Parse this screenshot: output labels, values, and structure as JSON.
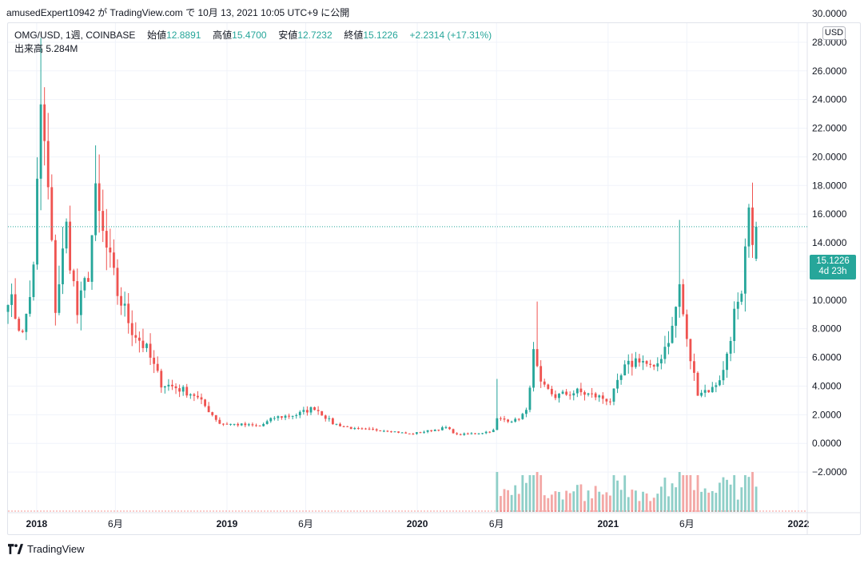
{
  "caption": "amusedExpert10942 が TradingView.com で 10月 13, 2021 10:05 UTC+9 に公開",
  "legend": {
    "symbol": "OMG/USD, 1週, COINBASE",
    "open_label": "始値",
    "open_value": "12.8891",
    "high_label": "高値",
    "high_value": "15.4700",
    "low_label": "安値",
    "low_value": "12.7232",
    "close_label": "終値",
    "close_value": "15.1226",
    "change": "+2.2314 (+17.31%)",
    "volume_label": "出来高",
    "volume_value": "5.284M"
  },
  "currency_button": "USD",
  "last_price": {
    "value": "15.1226",
    "countdown": "4d 23h"
  },
  "brand_name": "TradingView",
  "colors": {
    "up": "#26a69a",
    "down": "#ef5350",
    "vol_up": "#8fcfc8",
    "vol_down": "#f3a8a6",
    "grid": "#f0f3fa",
    "axis_text": "#131722"
  },
  "chart_data": {
    "type": "candlestick",
    "symbol": "OMG/USD",
    "interval": "1W",
    "y_ticks": [
      "30.0000",
      "28.0000",
      "26.0000",
      "24.0000",
      "22.0000",
      "20.0000",
      "18.0000",
      "16.0000",
      "14.0000",
      "12.0000",
      "10.0000",
      "8.0000",
      "6.0000",
      "4.0000",
      "2.0000",
      "0.0000",
      "−2.0000"
    ],
    "ylim": [
      -2,
      30
    ],
    "x_ticks": [
      {
        "label": "2018",
        "date": "2018-01-01"
      },
      {
        "label": "6月",
        "date": "2018-06-01"
      },
      {
        "label": "2019",
        "date": "2019-01-01"
      },
      {
        "label": "6月",
        "date": "2019-06-01"
      },
      {
        "label": "2020",
        "date": "2020-01-01"
      },
      {
        "label": "6月",
        "date": "2020-06-01"
      },
      {
        "label": "2021",
        "date": "2021-01-01"
      },
      {
        "label": "6月",
        "date": "2021-06-01"
      },
      {
        "label": "2022",
        "date": "2022-01-01"
      }
    ],
    "xlim": [
      "2017-11-07",
      "2022-01-18"
    ],
    "price_keypoints": [
      [
        "2017-11-07",
        10.5
      ],
      [
        "2017-12-05",
        7.5
      ],
      [
        "2017-12-26",
        12.0
      ],
      [
        "2018-01-09",
        23.5
      ],
      [
        "2018-01-23",
        17.5
      ],
      [
        "2018-02-06",
        9.5
      ],
      [
        "2018-02-27",
        15.0
      ],
      [
        "2018-03-20",
        9.0
      ],
      [
        "2018-04-10",
        12.0
      ],
      [
        "2018-04-24",
        17.0
      ],
      [
        "2018-05-08",
        14.5
      ],
      [
        "2018-06-05",
        10.5
      ],
      [
        "2018-07-03",
        8.0
      ],
      [
        "2018-07-31",
        6.5
      ],
      [
        "2018-08-28",
        4.2
      ],
      [
        "2018-09-25",
        3.9
      ],
      [
        "2018-10-30",
        3.4
      ],
      [
        "2018-11-20",
        2.6
      ],
      [
        "2018-12-18",
        1.4
      ],
      [
        "2019-01-29",
        1.3
      ],
      [
        "2019-03-05",
        1.2
      ],
      [
        "2019-04-02",
        1.8
      ],
      [
        "2019-05-14",
        2.0
      ],
      [
        "2019-06-18",
        2.5
      ],
      [
        "2019-07-23",
        1.4
      ],
      [
        "2019-09-03",
        1.0
      ],
      [
        "2019-11-05",
        0.9
      ],
      [
        "2019-12-17",
        0.65
      ],
      [
        "2020-02-04",
        0.95
      ],
      [
        "2020-02-25",
        1.1
      ],
      [
        "2020-03-17",
        0.6
      ],
      [
        "2020-05-05",
        0.75
      ],
      [
        "2020-05-26",
        0.9
      ],
      [
        "2020-06-02",
        1.7
      ],
      [
        "2020-07-07",
        1.6
      ],
      [
        "2020-07-28",
        2.2
      ],
      [
        "2020-08-11",
        6.2
      ],
      [
        "2020-08-25",
        4.0
      ],
      [
        "2020-09-22",
        3.3
      ],
      [
        "2020-11-03",
        3.6
      ],
      [
        "2020-12-08",
        3.3
      ],
      [
        "2021-01-05",
        3.0
      ],
      [
        "2021-02-02",
        5.2
      ],
      [
        "2021-03-02",
        6.0
      ],
      [
        "2021-03-30",
        5.0
      ],
      [
        "2021-05-04",
        8.0
      ],
      [
        "2021-05-18",
        11.0
      ],
      [
        "2021-06-01",
        7.0
      ],
      [
        "2021-06-22",
        3.6
      ],
      [
        "2021-07-20",
        3.8
      ],
      [
        "2021-08-10",
        5.0
      ],
      [
        "2021-08-31",
        9.0
      ],
      [
        "2021-09-14",
        9.8
      ],
      [
        "2021-09-28",
        16.0
      ],
      [
        "2021-10-05",
        12.9
      ],
      [
        "2021-10-12",
        15.1
      ]
    ],
    "spikes": [
      {
        "date": "2018-01-09",
        "high": 28.3
      },
      {
        "date": "2018-01-16",
        "high": 24.6
      },
      {
        "date": "2018-04-24",
        "high": 20.8
      },
      {
        "date": "2020-06-02",
        "high": 4.5
      },
      {
        "date": "2020-08-18",
        "high": 9.9
      },
      {
        "date": "2021-05-18",
        "high": 15.6
      },
      {
        "date": "2021-10-05",
        "high": 18.2
      }
    ],
    "volume_start": "2020-06-02",
    "last": {
      "open": 12.8891,
      "high": 15.47,
      "low": 12.7232,
      "close": 15.1226,
      "volume": "5.284M"
    }
  }
}
